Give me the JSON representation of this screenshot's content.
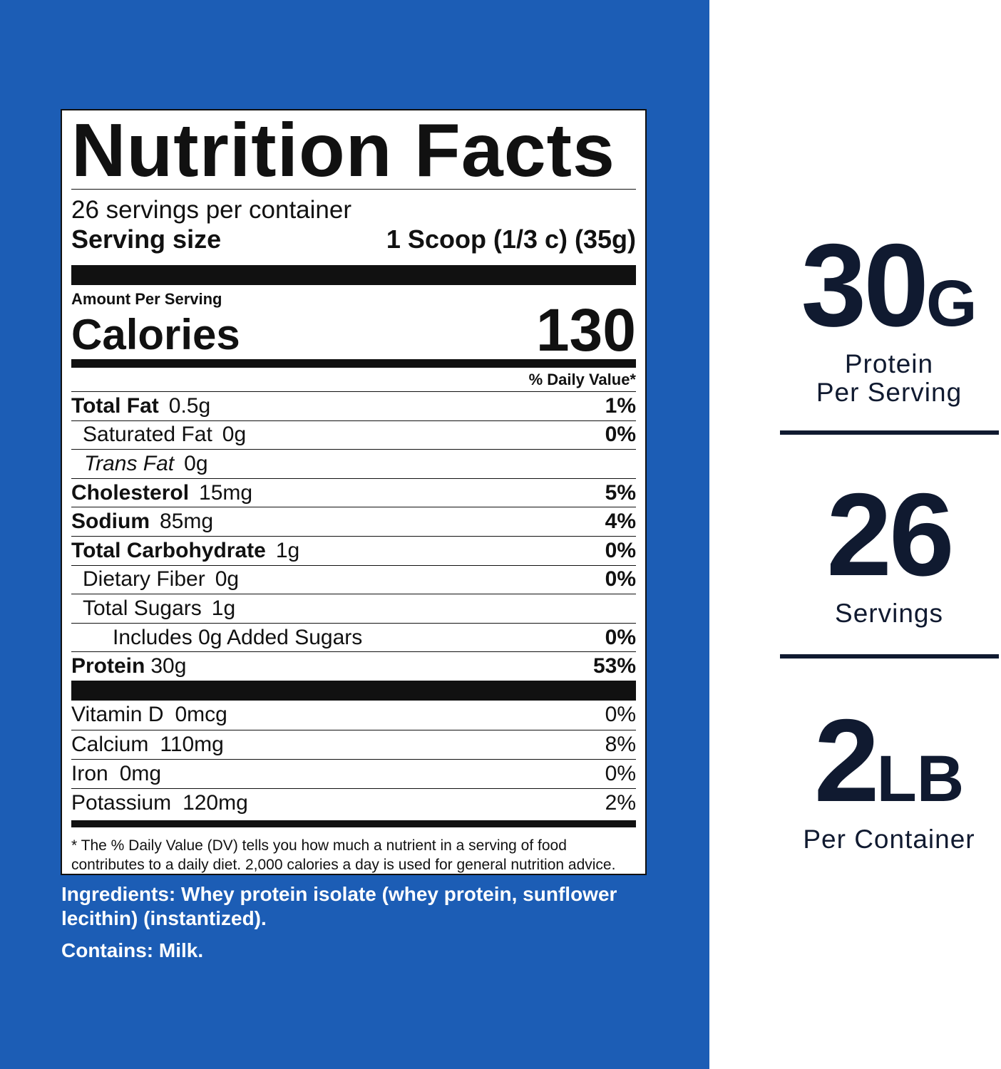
{
  "label": {
    "title": "Nutrition Facts",
    "servings_per_container": "26 servings per container",
    "serving_size_label": "Serving size",
    "serving_size": "1 Scoop (1/3 c) (35g)",
    "amount_per_serving": "Amount Per Serving",
    "calories_label": "Calories",
    "calories": 130,
    "daily_value_header": "% Daily Value*",
    "nutrients": [
      {
        "name": "Total Fat",
        "amount": "0.5g",
        "daily_value": "1%"
      },
      {
        "name": "Saturated Fat",
        "amount": "0g",
        "daily_value": "0%"
      },
      {
        "name": "Trans Fat",
        "amount": "0g"
      },
      {
        "name": "Cholesterol",
        "amount": "15mg",
        "daily_value": "5%"
      },
      {
        "name": "Sodium",
        "amount": "85mg",
        "daily_value": "4%"
      },
      {
        "name": "Total Carbohydrate",
        "amount": "1g",
        "daily_value": "0%"
      },
      {
        "name": "Dietary Fiber",
        "amount": "0g",
        "daily_value": "0%"
      },
      {
        "name": "Total Sugars",
        "amount": "1g"
      },
      {
        "name": "Includes 0g Added Sugars",
        "daily_value": "0%"
      },
      {
        "name": "Protein",
        "amount": "30g",
        "daily_value": "53%"
      }
    ],
    "vitamins": [
      {
        "name": "Vitamin D",
        "amount": "0mcg",
        "daily_value": "0%"
      },
      {
        "name": "Calcium",
        "amount": "110mg",
        "daily_value": "8%"
      },
      {
        "name": "Iron",
        "amount": "0mg",
        "daily_value": "0%"
      },
      {
        "name": "Potassium",
        "amount": "120mg",
        "daily_value": "2%"
      }
    ],
    "footnote": "* The % Daily Value (DV) tells you how much a nutrient in a serving of food contributes to a daily diet. 2,000 calories a day is used for general nutrition advice."
  },
  "ingredients": "Ingredients: Whey protein isolate (whey protein, sunflower lecithin) (instantized).",
  "contains": "Contains: Milk.",
  "highlights": [
    {
      "value": "30",
      "unit": "G",
      "caption": [
        "Protein",
        "Per Serving"
      ]
    },
    {
      "value": "26",
      "caption": [
        "Servings"
      ]
    },
    {
      "value": "2",
      "unit": "LB",
      "caption": [
        "Per Container"
      ]
    }
  ]
}
